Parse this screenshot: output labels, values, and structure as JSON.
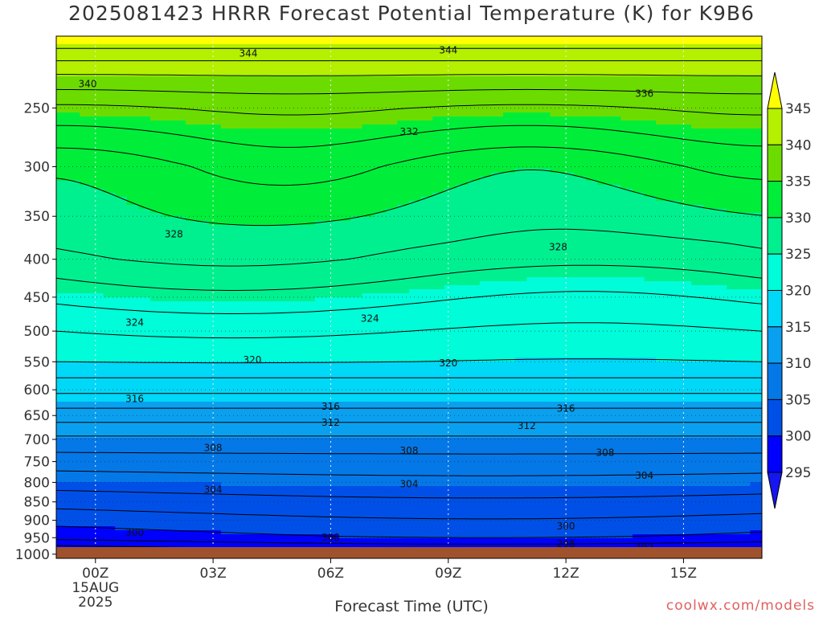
{
  "title": "2025081423 HRRR Forecast Potential Temperature (K) for K9B6",
  "xlabel": "Forecast Time (UTC)",
  "credit": "coolwx.com/models",
  "chart_data": {
    "type": "contour",
    "variable": "Potential Temperature (K)",
    "y_axis": {
      "unit": "hPa",
      "ticks": [
        250,
        300,
        350,
        400,
        450,
        500,
        550,
        600,
        650,
        700,
        750,
        800,
        850,
        900,
        950,
        1000
      ],
      "range": [
        1013,
        200
      ],
      "scale": "log"
    },
    "x_axis": {
      "ticks": [
        {
          "hour": 0,
          "label": "00Z",
          "sub": [
            "15AUG",
            "2025"
          ]
        },
        {
          "hour": 3,
          "label": "03Z"
        },
        {
          "hour": 6,
          "label": "06Z"
        },
        {
          "hour": 9,
          "label": "09Z"
        },
        {
          "hour": 12,
          "label": "12Z"
        },
        {
          "hour": 15,
          "label": "15Z"
        }
      ],
      "range": [
        -1,
        17
      ]
    },
    "colorbar": {
      "levels": [
        295,
        300,
        305,
        310,
        315,
        320,
        325,
        330,
        335,
        340,
        345
      ],
      "colors": [
        "#1616ee",
        "#0000ff",
        "#0050e8",
        "#0578e8",
        "#0aa0f0",
        "#00d8f8",
        "#00fcd8",
        "#00f090",
        "#00ee3a",
        "#6cdc00",
        "#b4f000",
        "#ffff00"
      ]
    },
    "contour_labels": [
      {
        "value": 344,
        "x": 3.9,
        "p": 211
      },
      {
        "value": 344,
        "x": 9.0,
        "p": 209
      },
      {
        "value": 340,
        "x": -0.2,
        "p": 232
      },
      {
        "value": 336,
        "x": 14.0,
        "p": 239
      },
      {
        "value": 332,
        "x": 8.0,
        "p": 269
      },
      {
        "value": 328,
        "x": 2.0,
        "p": 370
      },
      {
        "value": 328,
        "x": 11.8,
        "p": 385
      },
      {
        "value": 324,
        "x": 1.0,
        "p": 487
      },
      {
        "value": 324,
        "x": 7.0,
        "p": 481
      },
      {
        "value": 320,
        "x": 4.0,
        "p": 547
      },
      {
        "value": 320,
        "x": 9.0,
        "p": 552
      },
      {
        "value": 316,
        "x": 1.0,
        "p": 617
      },
      {
        "value": 316,
        "x": 6.0,
        "p": 632
      },
      {
        "value": 316,
        "x": 12.0,
        "p": 636
      },
      {
        "value": 312,
        "x": 6.0,
        "p": 664
      },
      {
        "value": 312,
        "x": 11.0,
        "p": 671
      },
      {
        "value": 308,
        "x": 3.0,
        "p": 719
      },
      {
        "value": 308,
        "x": 8.0,
        "p": 725
      },
      {
        "value": 308,
        "x": 13.0,
        "p": 730
      },
      {
        "value": 304,
        "x": 3.0,
        "p": 818
      },
      {
        "value": 304,
        "x": 8.0,
        "p": 804
      },
      {
        "value": 304,
        "x": 14.0,
        "p": 783
      },
      {
        "value": 300,
        "x": 1.0,
        "p": 935
      },
      {
        "value": 300,
        "x": 6.0,
        "p": 949
      },
      {
        "value": 300,
        "x": 12.0,
        "p": 917
      },
      {
        "value": 296,
        "x": 4.0,
        "p": 995
      },
      {
        "value": 298,
        "x": 12.0,
        "p": 968
      },
      {
        "value": 292,
        "x": 7.0,
        "p": 1000
      },
      {
        "value": 292,
        "x": 14.0,
        "p": 979
      }
    ]
  }
}
